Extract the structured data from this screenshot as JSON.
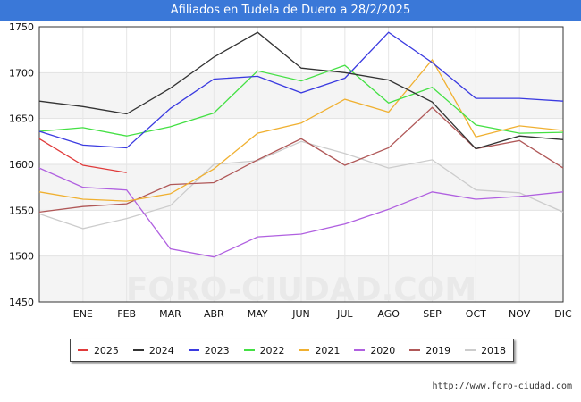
{
  "header": {
    "title": "Afiliados en Tudela de Duero a 28/2/2025"
  },
  "footer": {
    "source": "http://www.foro-ciudad.com"
  },
  "watermark": "FORO-CIUDAD.COM",
  "chart_data": {
    "type": "line",
    "title": "Afiliados en Tudela de Duero a 28/2/2025",
    "xlabel": "",
    "ylabel": "",
    "categories": [
      "ENE",
      "ENE",
      "FEB",
      "MAR",
      "ABR",
      "MAY",
      "JUN",
      "JUL",
      "AGO",
      "SEP",
      "OCT",
      "NOV",
      "DIC"
    ],
    "x_tick_labels": [
      "",
      "ENE",
      "FEB",
      "MAR",
      "ABR",
      "MAY",
      "JUN",
      "JUL",
      "AGO",
      "SEP",
      "OCT",
      "NOV",
      "DIC"
    ],
    "y_ticks": [
      1450,
      1500,
      1550,
      1600,
      1650,
      1700,
      1750
    ],
    "ylim": [
      1450,
      1750
    ],
    "grid": "horizontal bands",
    "legend_position": "bottom",
    "series": [
      {
        "name": "2025",
        "color": "#e03a3a",
        "values": [
          1628,
          1599,
          1591,
          null,
          null,
          null,
          null,
          null,
          null,
          null,
          null,
          null,
          null
        ]
      },
      {
        "name": "2024",
        "color": "#333333",
        "values": [
          1669,
          1663,
          1655,
          1683,
          1717,
          1744,
          1705,
          1700,
          1692,
          1668,
          1617,
          1631,
          1627
        ]
      },
      {
        "name": "2023",
        "color": "#3a3ae0",
        "values": [
          1636,
          1621,
          1618,
          1661,
          1693,
          1696,
          1678,
          1694,
          1744,
          1711,
          1672,
          1672,
          1669
        ]
      },
      {
        "name": "2022",
        "color": "#44e044",
        "values": [
          1636,
          1640,
          1631,
          1641,
          1656,
          1702,
          1691,
          1708,
          1667,
          1684,
          1643,
          1634,
          1635
        ]
      },
      {
        "name": "2021",
        "color": "#f0b030",
        "values": [
          1570,
          1562,
          1560,
          1568,
          1595,
          1634,
          1645,
          1671,
          1657,
          1714,
          1630,
          1642,
          1637
        ]
      },
      {
        "name": "2020",
        "color": "#b060e0",
        "values": [
          1596,
          1575,
          1572,
          1508,
          1499,
          1521,
          1524,
          1535,
          1551,
          1570,
          1562,
          1565,
          1570
        ]
      },
      {
        "name": "2019",
        "color": "#b05858",
        "values": [
          1548,
          1554,
          1557,
          1578,
          1580,
          1605,
          1628,
          1599,
          1618,
          1662,
          1617,
          1626,
          1596
        ]
      },
      {
        "name": "2018",
        "color": "#cccccc",
        "values": [
          1546,
          1530,
          1541,
          1555,
          1600,
          1604,
          1625,
          1612,
          1596,
          1605,
          1572,
          1569,
          1548
        ]
      }
    ]
  }
}
